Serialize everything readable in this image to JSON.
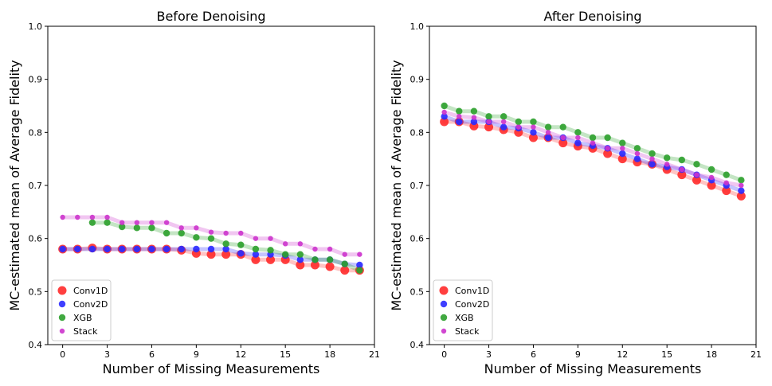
{
  "chart_data": [
    {
      "type": "scatter",
      "title": "Before Denoising",
      "xlabel": "Number of Missing Measurements",
      "ylabel": "MC-estimated mean of Average Fidelity",
      "xlim": [
        -1,
        21
      ],
      "ylim": [
        0.4,
        1.0
      ],
      "xticks": [
        0,
        3,
        6,
        9,
        12,
        15,
        18,
        21
      ],
      "yticks": [
        0.4,
        0.5,
        0.6,
        0.7,
        0.8,
        0.9,
        1.0
      ],
      "xtick_labels": [
        "0",
        "3",
        "6",
        "9",
        "12",
        "15",
        "18",
        "21"
      ],
      "ytick_labels": [
        "0.4",
        "0.5",
        "0.6",
        "0.7",
        "0.8",
        "0.9",
        "1.0"
      ],
      "legend_position": "lower-left",
      "x": [
        0,
        1,
        2,
        3,
        4,
        5,
        6,
        7,
        8,
        9,
        10,
        11,
        12,
        13,
        14,
        15,
        16,
        17,
        18,
        19,
        20
      ],
      "series": [
        {
          "name": "Conv1D",
          "color": "#ff2a2a",
          "marker": "large",
          "values": [
            0.58,
            0.58,
            0.582,
            0.58,
            0.58,
            0.58,
            0.58,
            0.58,
            0.578,
            0.572,
            0.57,
            0.57,
            0.57,
            0.56,
            0.56,
            0.56,
            0.55,
            0.55,
            0.547,
            0.54,
            0.54
          ]
        },
        {
          "name": "Conv2D",
          "color": "#2a2aff",
          "marker": "medium",
          "values": [
            0.58,
            0.58,
            0.58,
            0.58,
            0.58,
            0.58,
            0.58,
            0.58,
            0.58,
            0.58,
            0.58,
            0.58,
            0.572,
            0.57,
            0.57,
            0.568,
            0.56,
            0.56,
            0.56,
            0.552,
            0.55
          ]
        },
        {
          "name": "XGB",
          "color": "#2ca02c",
          "marker": "medium",
          "values": [
            null,
            null,
            0.63,
            0.63,
            0.622,
            0.62,
            0.62,
            0.61,
            0.61,
            0.602,
            0.6,
            0.59,
            0.588,
            0.58,
            0.578,
            0.57,
            0.57,
            0.56,
            0.56,
            0.552,
            0.54
          ]
        },
        {
          "name": "Stack",
          "color": "#cc33cc",
          "marker": "small",
          "values": [
            0.64,
            0.64,
            0.64,
            0.64,
            0.63,
            0.63,
            0.63,
            0.63,
            0.62,
            0.62,
            0.612,
            0.61,
            0.61,
            0.6,
            0.6,
            0.59,
            0.59,
            0.58,
            0.58,
            0.57,
            0.57
          ]
        }
      ]
    },
    {
      "type": "scatter",
      "title": "After Denoising",
      "xlabel": "Number of Missing Measurements",
      "ylabel": "MC-estimated mean of Average Fidelity",
      "xlim": [
        -1,
        21
      ],
      "ylim": [
        0.4,
        1.0
      ],
      "xticks": [
        0,
        3,
        6,
        9,
        12,
        15,
        18,
        21
      ],
      "yticks": [
        0.4,
        0.5,
        0.6,
        0.7,
        0.8,
        0.9,
        1.0
      ],
      "xtick_labels": [
        "0",
        "3",
        "6",
        "9",
        "12",
        "15",
        "18",
        "21"
      ],
      "ytick_labels": [
        "0.4",
        "0.5",
        "0.6",
        "0.7",
        "0.8",
        "0.9",
        "1.0"
      ],
      "legend_position": "lower-left",
      "x": [
        0,
        1,
        2,
        3,
        4,
        5,
        6,
        7,
        8,
        9,
        10,
        11,
        12,
        13,
        14,
        15,
        16,
        17,
        18,
        19,
        20
      ],
      "series": [
        {
          "name": "Conv1D",
          "color": "#ff2a2a",
          "marker": "large",
          "values": [
            0.82,
            0.82,
            0.812,
            0.81,
            0.805,
            0.8,
            0.79,
            0.79,
            0.78,
            0.774,
            0.77,
            0.76,
            0.75,
            0.744,
            0.74,
            0.73,
            0.72,
            0.71,
            0.7,
            0.69,
            0.68
          ]
        },
        {
          "name": "Conv2D",
          "color": "#2a2aff",
          "marker": "medium",
          "values": [
            0.83,
            0.82,
            0.82,
            0.82,
            0.81,
            0.808,
            0.8,
            0.79,
            0.79,
            0.78,
            0.775,
            0.77,
            0.76,
            0.75,
            0.74,
            0.735,
            0.73,
            0.72,
            0.71,
            0.7,
            0.69
          ]
        },
        {
          "name": "XGB",
          "color": "#2ca02c",
          "marker": "medium",
          "values": [
            0.85,
            0.84,
            0.84,
            0.83,
            0.83,
            0.82,
            0.82,
            0.81,
            0.81,
            0.8,
            0.79,
            0.79,
            0.78,
            0.77,
            0.76,
            0.752,
            0.748,
            0.74,
            0.73,
            0.72,
            0.71
          ]
        },
        {
          "name": "Stack",
          "color": "#cc33cc",
          "marker": "small",
          "values": [
            0.838,
            0.83,
            0.828,
            0.82,
            0.82,
            0.81,
            0.81,
            0.8,
            0.79,
            0.79,
            0.78,
            0.77,
            0.77,
            0.76,
            0.75,
            0.74,
            0.73,
            0.72,
            0.715,
            0.705,
            0.7
          ]
        }
      ]
    }
  ]
}
